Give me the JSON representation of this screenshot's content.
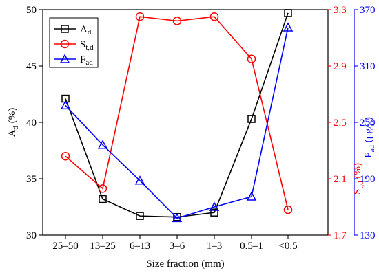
{
  "chart_data": {
    "type": "line",
    "xlabel": "Size fraction (mm)",
    "categories": [
      "25–50",
      "13–25",
      "6–13",
      "3–6",
      "1–3",
      "0.5–1",
      "<0.5"
    ],
    "axes": {
      "left": {
        "label_main": "A",
        "label_sub": "d",
        "label_unit": " (%)",
        "range": [
          30,
          50
        ],
        "ticks": [
          30,
          35,
          40,
          45,
          50
        ],
        "tick_labels": [
          "30",
          "35",
          "40",
          "45",
          "50"
        ],
        "color": "#000000"
      },
      "right1": {
        "label_main": "S",
        "label_sub": "t,d",
        "label_unit": " (%)",
        "range": [
          1.7,
          3.3
        ],
        "ticks": [
          1.7,
          2.1,
          2.5,
          2.9,
          3.3
        ],
        "tick_labels": [
          "1.7",
          "2.1",
          "2.5",
          "2.9",
          "3.3"
        ],
        "color": "#ff0000"
      },
      "right2": {
        "label_main": "F",
        "label_sub": "ad",
        "label_unit": " (μg/g)",
        "range": [
          130,
          370
        ],
        "ticks": [
          130,
          190,
          250,
          310,
          370
        ],
        "tick_labels": [
          "130",
          "190",
          "250",
          "310",
          "370"
        ],
        "color": "#0000ff"
      }
    },
    "series": [
      {
        "name_main": "A",
        "name_sub": "d",
        "axis": "left",
        "marker": "square",
        "color": "#000000",
        "values": [
          42.1,
          33.2,
          31.7,
          31.6,
          32.0,
          40.3,
          49.7
        ]
      },
      {
        "name_main": "S",
        "name_sub": "t,d",
        "axis": "right1",
        "marker": "circle",
        "color": "#ff0000",
        "values": [
          2.26,
          2.03,
          3.25,
          3.22,
          3.25,
          2.95,
          1.88
        ]
      },
      {
        "name_main": "F",
        "name_sub": "ad",
        "axis": "right2",
        "marker": "triangle",
        "color": "#0000ff",
        "values": [
          268,
          226,
          188,
          148,
          160,
          171,
          351
        ]
      }
    ],
    "legend_position": "top-left",
    "grid": false
  }
}
